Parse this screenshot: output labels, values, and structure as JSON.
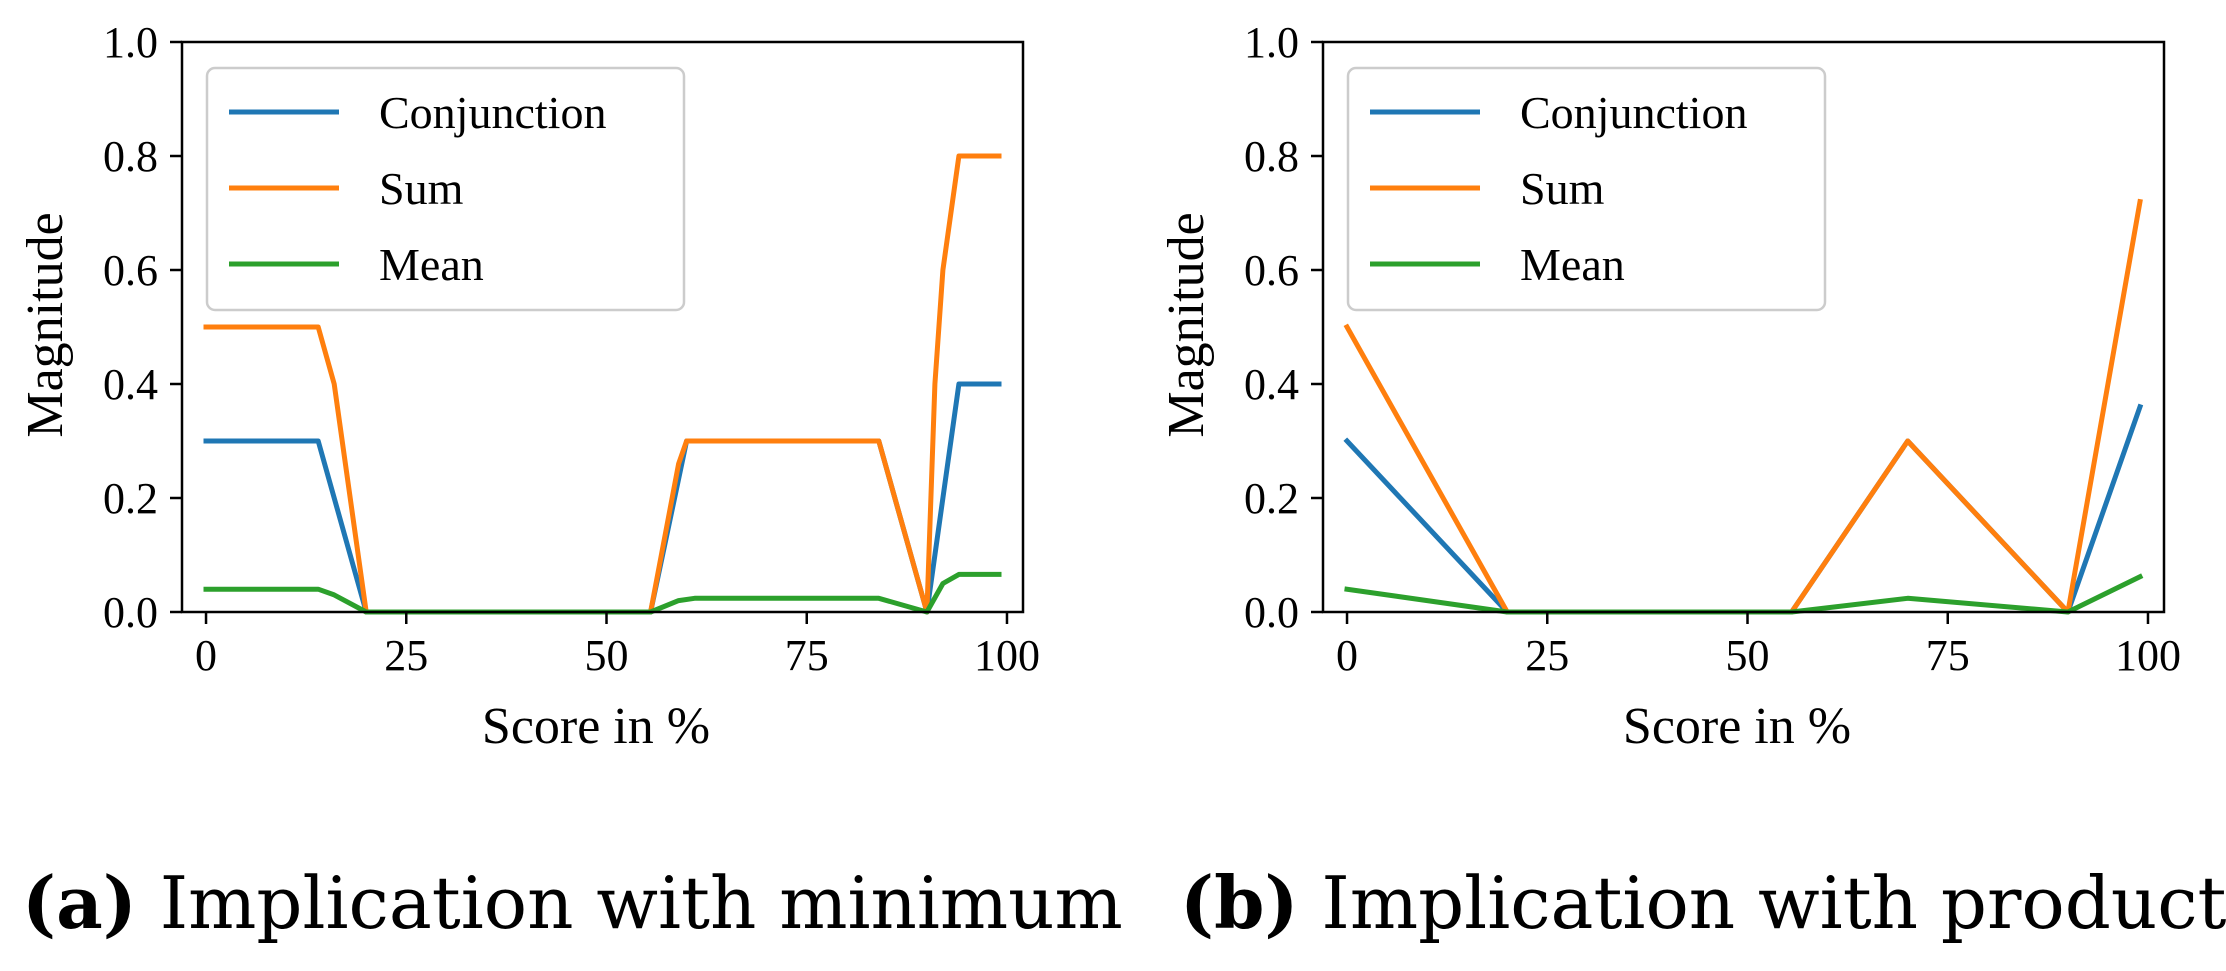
{
  "chart_data": [
    {
      "type": "line",
      "id": "a",
      "xlabel": "Score in %",
      "ylabel": "Magnitude",
      "xlim": [
        -3,
        102
      ],
      "ylim": [
        0,
        1
      ],
      "xticks": [
        0,
        25,
        50,
        75,
        100
      ],
      "yticks": [
        0.0,
        0.2,
        0.4,
        0.6,
        0.8,
        1.0
      ],
      "ytick_labels": [
        "0.0",
        "0.2",
        "0.4",
        "0.6",
        "0.8",
        "1.0"
      ],
      "legend_position": "upper-left",
      "series": [
        {
          "name": "Conjunction",
          "color": "#1f77b4",
          "x": [
            0,
            14,
            20,
            55.5,
            60,
            84,
            90,
            94,
            99
          ],
          "y": [
            0.3,
            0.3,
            0,
            0,
            0.3,
            0.3,
            0,
            0.4,
            0.4
          ]
        },
        {
          "name": "Sum",
          "color": "#ff7f0e",
          "x": [
            0,
            14,
            16,
            20,
            55.5,
            59,
            60,
            84,
            90,
            91,
            92,
            94,
            99
          ],
          "y": [
            0.5,
            0.5,
            0.4,
            0,
            0,
            0.26,
            0.3,
            0.3,
            0,
            0.4,
            0.6,
            0.8,
            0.8
          ]
        },
        {
          "name": "Mean",
          "color": "#2ca02c",
          "x": [
            0,
            14,
            16,
            20,
            55.5,
            59,
            61,
            84,
            90,
            92,
            94,
            99
          ],
          "y": [
            0.04,
            0.04,
            0.03,
            0,
            0,
            0.02,
            0.024,
            0.024,
            0,
            0.05,
            0.066,
            0.066
          ]
        }
      ],
      "caption": {
        "label": "(a)",
        "text": "Implication with minimum"
      }
    },
    {
      "type": "line",
      "id": "b",
      "xlabel": "Score in %",
      "ylabel": "Magnitude",
      "xlim": [
        -3,
        102
      ],
      "ylim": [
        0,
        1
      ],
      "xticks": [
        0,
        25,
        50,
        75,
        100
      ],
      "yticks": [
        0.0,
        0.2,
        0.4,
        0.6,
        0.8,
        1.0
      ],
      "ytick_labels": [
        "0.0",
        "0.2",
        "0.4",
        "0.6",
        "0.8",
        "1.0"
      ],
      "legend_position": "upper-left",
      "series": [
        {
          "name": "Conjunction",
          "color": "#1f77b4",
          "x": [
            0,
            20,
            55.5,
            70,
            90,
            99
          ],
          "y": [
            0.3,
            0,
            0,
            0.3,
            0,
            0.36
          ]
        },
        {
          "name": "Sum",
          "color": "#ff7f0e",
          "x": [
            0,
            20,
            55.5,
            70,
            90,
            99
          ],
          "y": [
            0.5,
            0,
            0,
            0.3,
            0,
            0.72
          ]
        },
        {
          "name": "Mean",
          "color": "#2ca02c",
          "x": [
            0,
            20,
            55.5,
            70,
            90,
            99
          ],
          "y": [
            0.04,
            0,
            0,
            0.024,
            0,
            0.062
          ]
        }
      ],
      "caption": {
        "label": "(b)",
        "text": "Implication with product"
      }
    }
  ]
}
